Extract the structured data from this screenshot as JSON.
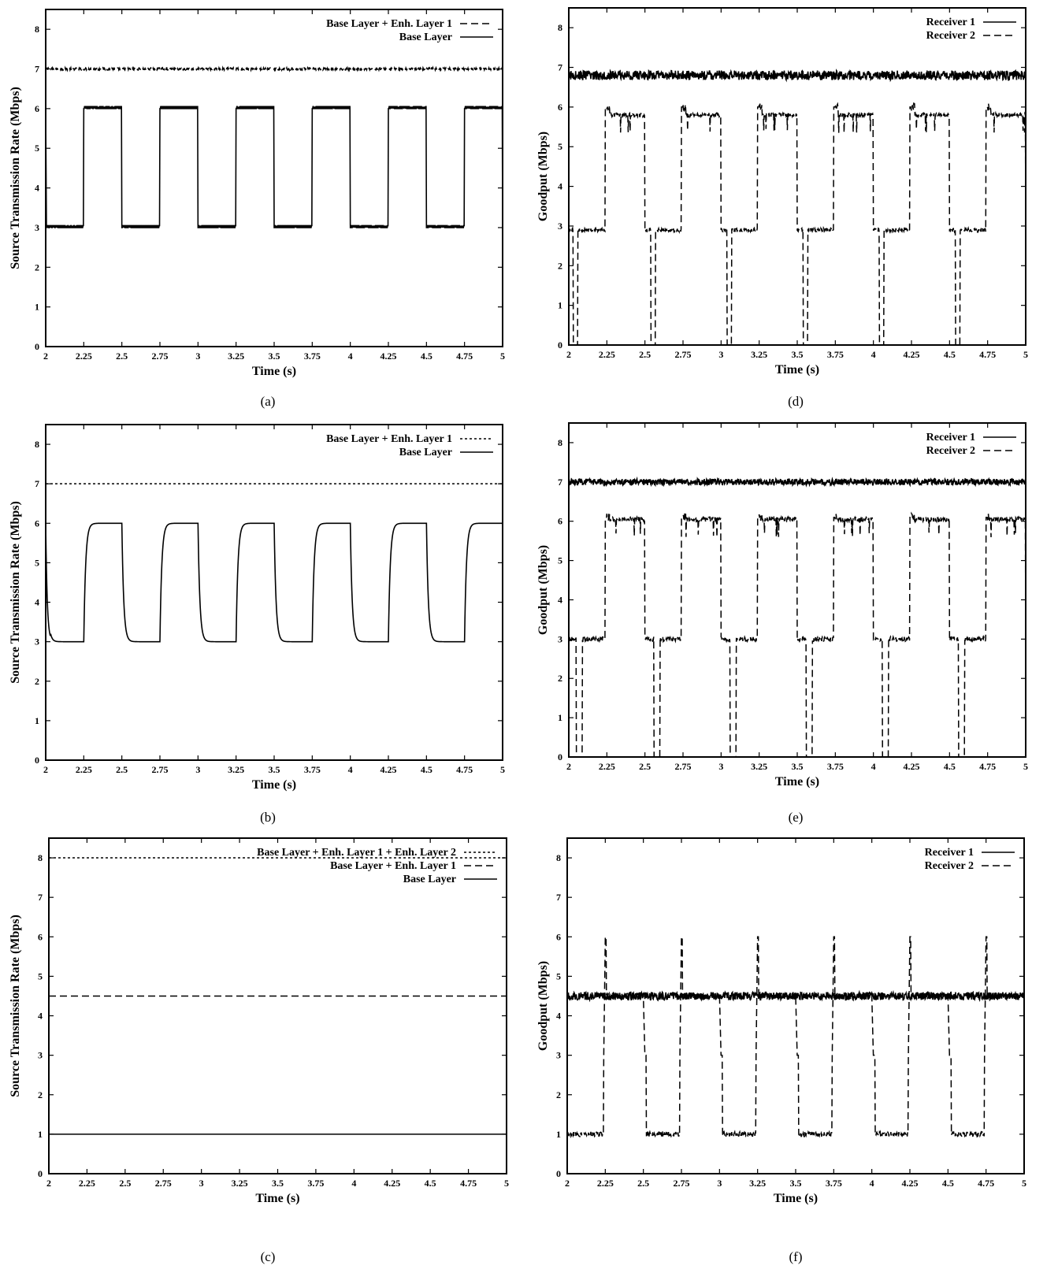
{
  "chart_data": [
    {
      "id": "a",
      "caption": "(a)",
      "type": "line",
      "xlabel": "Time (s)",
      "ylabel": "Source Transmission Rate (Mbps)",
      "xlim": [
        2,
        5
      ],
      "ylim": [
        0,
        8.5
      ],
      "xticks": [
        2,
        2.25,
        2.5,
        2.75,
        3,
        3.25,
        3.5,
        3.75,
        4,
        4.25,
        4.5,
        4.75,
        5
      ],
      "yticks": [
        0,
        1,
        2,
        3,
        4,
        5,
        6,
        7,
        8
      ],
      "legend_position": "top-right",
      "series": [
        {
          "name": "Base Layer + Enh. Layer 1",
          "style": "dashed",
          "shape": "constant",
          "value": 7.0,
          "noise": 0.03
        },
        {
          "name": "Base Layer",
          "style": "solid",
          "shape": "square",
          "low": 3.0,
          "high": 6.0,
          "period": 0.5,
          "rise_at": 0.25,
          "start_spike": 6.0,
          "ripple": 0.05
        }
      ]
    },
    {
      "id": "b",
      "caption": "(b)",
      "type": "line",
      "xlabel": "Time (s)",
      "ylabel": "Source Transmission Rate (Mbps)",
      "xlim": [
        2,
        5
      ],
      "ylim": [
        0,
        8.5
      ],
      "xticks": [
        2,
        2.25,
        2.5,
        2.75,
        3,
        3.25,
        3.5,
        3.75,
        4,
        4.25,
        4.5,
        4.75,
        5
      ],
      "yticks": [
        0,
        1,
        2,
        3,
        4,
        5,
        6,
        7,
        8
      ],
      "legend_position": "top-right",
      "series": [
        {
          "name": "Base Layer + Enh. Layer 1",
          "style": "dotted",
          "shape": "constant",
          "value": 7.0,
          "noise": 0.0
        },
        {
          "name": "Base Layer",
          "style": "solid",
          "shape": "smooth-square",
          "low": 3.0,
          "high": 6.0,
          "period": 0.5,
          "rise_at": 0.25,
          "start_spike": 6.0,
          "ripple": 0.0
        }
      ]
    },
    {
      "id": "c",
      "caption": "(c)",
      "type": "line",
      "xlabel": "Time (s)",
      "ylabel": "Source Transmission Rate (Mbps)",
      "xlim": [
        2,
        5
      ],
      "ylim": [
        0,
        8.5
      ],
      "xticks": [
        2,
        2.25,
        2.5,
        2.75,
        3,
        3.25,
        3.5,
        3.75,
        4,
        4.25,
        4.5,
        4.75,
        5
      ],
      "yticks": [
        0,
        1,
        2,
        3,
        4,
        5,
        6,
        7,
        8
      ],
      "legend_position": "top-right",
      "series": [
        {
          "name": "Base Layer + Enh. Layer 1 + Enh. Layer 2",
          "style": "dotted",
          "shape": "constant",
          "value": 8.0,
          "noise": 0.0
        },
        {
          "name": "Base Layer + Enh. Layer 1",
          "style": "dashed",
          "shape": "constant",
          "value": 4.5,
          "noise": 0.0
        },
        {
          "name": "Base Layer",
          "style": "solid",
          "shape": "constant",
          "value": 1.0,
          "noise": 0.0
        }
      ]
    },
    {
      "id": "d",
      "caption": "(d)",
      "type": "line",
      "xlabel": "Time (s)",
      "ylabel": "Goodput (Mbps)",
      "xlim": [
        2,
        5
      ],
      "ylim": [
        0,
        8.5
      ],
      "xticks": [
        2,
        2.25,
        2.5,
        2.75,
        3,
        3.25,
        3.5,
        3.75,
        4,
        4.25,
        4.5,
        4.75,
        5
      ],
      "yticks": [
        0,
        1,
        2,
        3,
        4,
        5,
        6,
        7,
        8
      ],
      "legend_position": "top-right",
      "series": [
        {
          "name": "Receiver 1",
          "style": "solid",
          "shape": "constant",
          "value": 6.8,
          "noise": 0.12
        },
        {
          "name": "Receiver 2",
          "style": "dashed",
          "shape": "receiver",
          "low": 2.9,
          "high": 5.8,
          "peak": 6.0,
          "period": 0.5,
          "rise_at": 0.25,
          "dips": [
            2.03,
            2.54,
            3.04,
            3.54,
            4.04,
            4.54
          ],
          "dip_width": 0.03,
          "noise": 0.05
        }
      ]
    },
    {
      "id": "e",
      "caption": "(e)",
      "type": "line",
      "xlabel": "Time (s)",
      "ylabel": "Goodput (Mbps)",
      "xlim": [
        2,
        5
      ],
      "ylim": [
        0,
        8.5
      ],
      "xticks": [
        2,
        2.25,
        2.5,
        2.75,
        3,
        3.25,
        3.5,
        3.75,
        4,
        4.25,
        4.5,
        4.75,
        5
      ],
      "yticks": [
        0,
        1,
        2,
        3,
        4,
        5,
        6,
        7,
        8
      ],
      "legend_position": "top-right",
      "series": [
        {
          "name": "Receiver 1",
          "style": "solid",
          "shape": "constant",
          "value": 7.0,
          "noise": 0.08
        },
        {
          "name": "Receiver 2",
          "style": "dashed",
          "shape": "receiver",
          "low": 3.0,
          "high": 6.05,
          "peak": 6.1,
          "period": 0.5,
          "rise_at": 0.25,
          "dips": [
            2.05,
            2.56,
            3.06,
            3.56,
            4.06,
            4.56
          ],
          "dip_width": 0.04,
          "noise": 0.06
        }
      ]
    },
    {
      "id": "f",
      "caption": "(f)",
      "type": "line",
      "xlabel": "Time (s)",
      "ylabel": "Goodput (Mbps)",
      "xlim": [
        2,
        5
      ],
      "ylim": [
        0,
        8.5
      ],
      "xticks": [
        2,
        2.25,
        2.5,
        2.75,
        3,
        3.25,
        3.5,
        3.75,
        4,
        4.25,
        4.5,
        4.75,
        5
      ],
      "yticks": [
        0,
        1,
        2,
        3,
        4,
        5,
        6,
        7,
        8
      ],
      "legend_position": "top-right",
      "series": [
        {
          "name": "Receiver 1",
          "style": "solid",
          "shape": "constant",
          "value": 4.5,
          "noise": 0.1
        },
        {
          "name": "Receiver 2",
          "style": "dashed",
          "shape": "receiver-low",
          "low": 1.0,
          "high": 4.5,
          "peak": 6.0,
          "period": 0.5,
          "rise_at": 0.25,
          "step": 3.0,
          "noise": 0.06
        }
      ]
    }
  ]
}
